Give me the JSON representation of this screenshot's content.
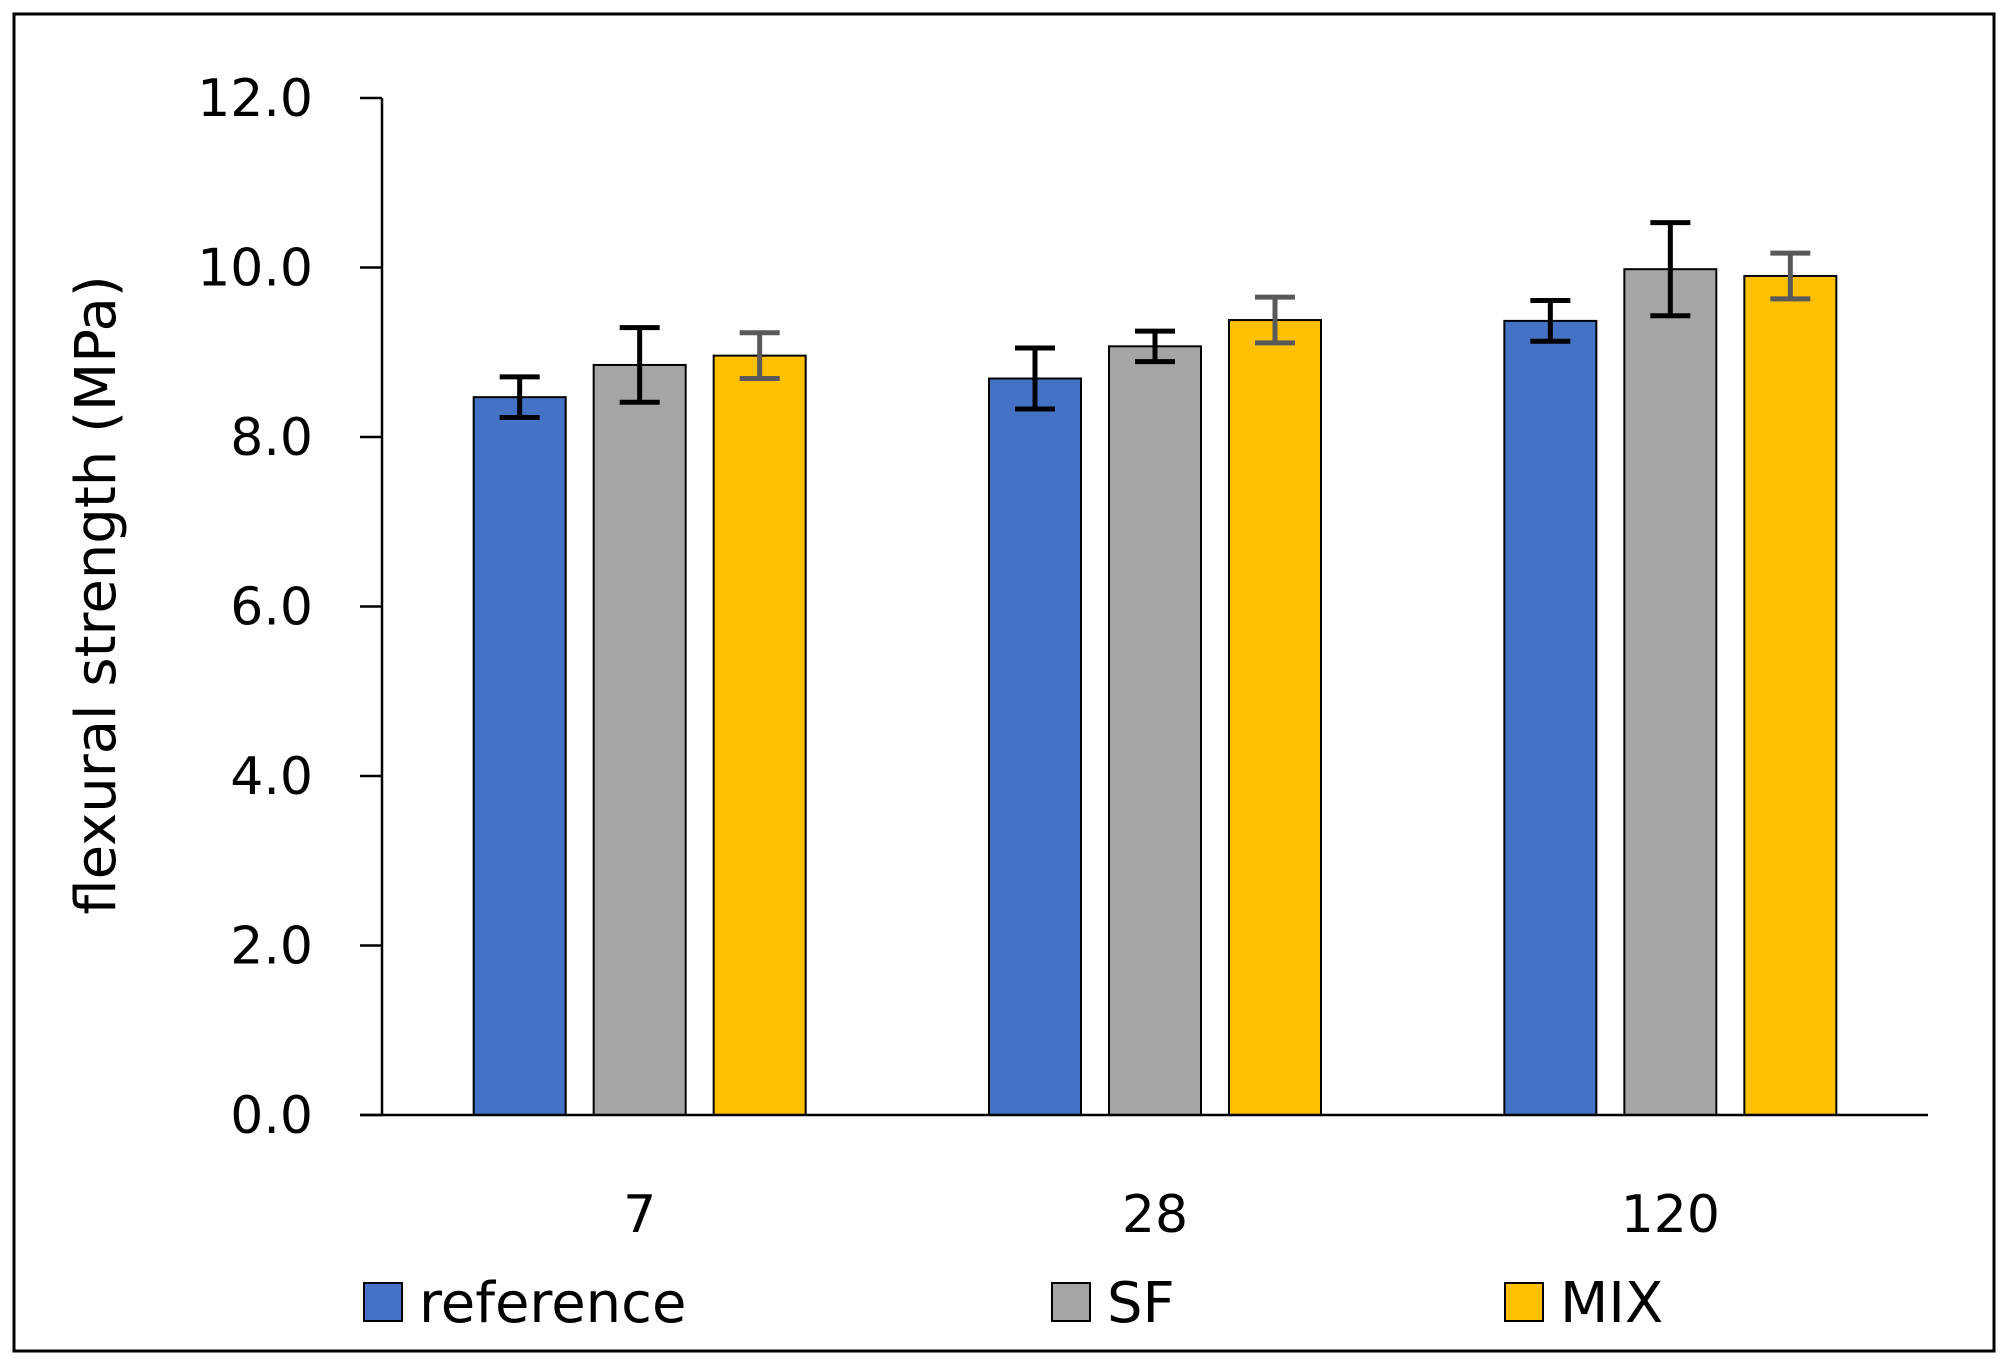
{
  "chart_data": {
    "type": "bar",
    "title": "",
    "xlabel": "",
    "ylabel": "flexural strength (MPa)",
    "ylim": [
      0,
      12
    ],
    "yticks": [
      "0.0",
      "2.0",
      "4.0",
      "6.0",
      "8.0",
      "10.0",
      "12.0"
    ],
    "categories": [
      "7",
      "28",
      "120"
    ],
    "series": [
      {
        "name": "reference",
        "color": "#4472C4",
        "values": [
          8.47,
          8.69,
          9.37
        ],
        "errors": [
          0.24,
          0.36,
          0.24
        ],
        "error_color": "#000000"
      },
      {
        "name": "SF",
        "color": "#A5A5A5",
        "values": [
          8.85,
          9.07,
          9.98
        ],
        "errors": [
          0.44,
          0.18,
          0.55
        ],
        "error_color": "#000000"
      },
      {
        "name": "MIX",
        "color": "#FFC000",
        "values": [
          8.96,
          9.38,
          9.9
        ],
        "errors": [
          0.27,
          0.27,
          0.27
        ],
        "error_color": "#595959"
      }
    ],
    "grid": false,
    "legend": "bottom"
  }
}
